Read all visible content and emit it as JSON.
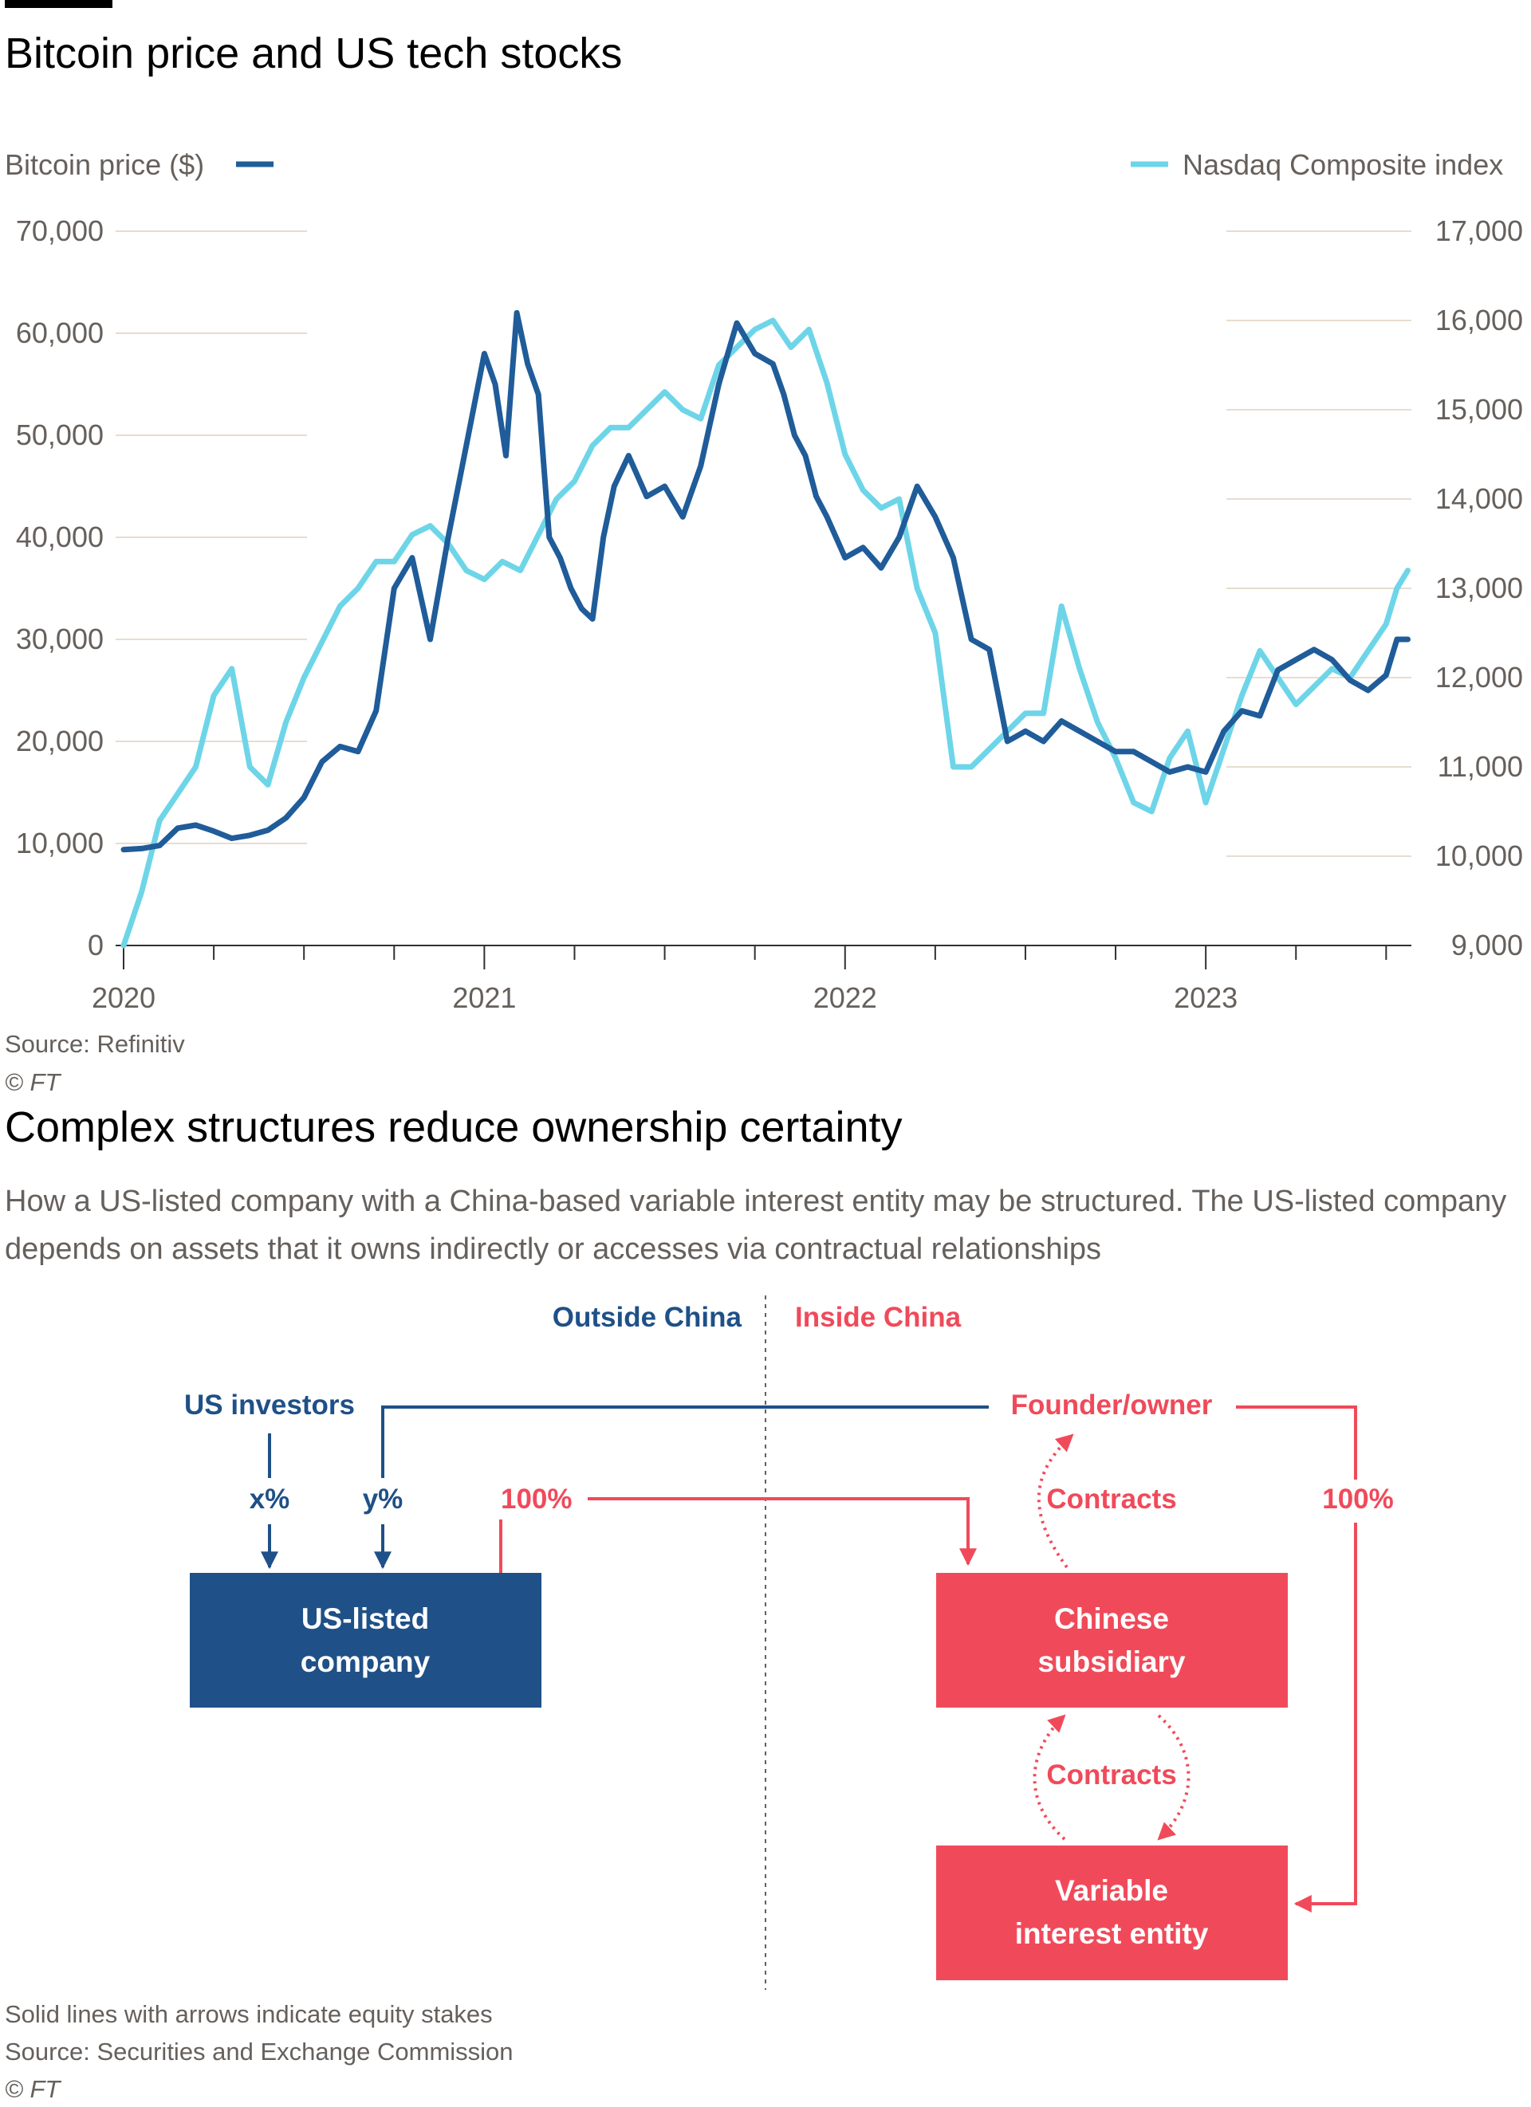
{
  "chart1": {
    "title": "Bitcoin price and US tech stocks",
    "source": "Source: Refinitiv",
    "copyright": "© FT"
  },
  "chart_data": {
    "type": "line",
    "title": "Bitcoin price and US tech stocks",
    "x_ticks": [
      "2020",
      "2021",
      "2022",
      "2023"
    ],
    "x_range": [
      2020.0,
      2023.57
    ],
    "left_axis": {
      "label": "Bitcoin price ($)",
      "ticks": [
        "0",
        "10,000",
        "20,000",
        "30,000",
        "40,000",
        "50,000",
        "60,000",
        "70,000"
      ],
      "range": [
        0,
        70000
      ]
    },
    "right_axis": {
      "label": "Nasdaq Composite index",
      "ticks": [
        "9,000",
        "10,000",
        "11,000",
        "12,000",
        "13,000",
        "14,000",
        "15,000",
        "16,000",
        "17,000"
      ],
      "range": [
        9000,
        17000
      ]
    },
    "grid": true,
    "legend": "top",
    "series": [
      {
        "name": "Bitcoin price ($)",
        "axis": "left",
        "color": "#1f5c99",
        "x": [
          2020.0,
          2020.05,
          2020.1,
          2020.15,
          2020.2,
          2020.25,
          2020.3,
          2020.35,
          2020.4,
          2020.45,
          2020.5,
          2020.55,
          2020.6,
          2020.65,
          2020.7,
          2020.75,
          2020.8,
          2020.85,
          2020.9,
          2020.95,
          2021.0,
          2021.03,
          2021.06,
          2021.09,
          2021.12,
          2021.15,
          2021.18,
          2021.21,
          2021.24,
          2021.27,
          2021.3,
          2021.33,
          2021.36,
          2021.4,
          2021.45,
          2021.5,
          2021.55,
          2021.6,
          2021.65,
          2021.7,
          2021.75,
          2021.8,
          2021.83,
          2021.86,
          2021.89,
          2021.92,
          2021.95,
          2022.0,
          2022.05,
          2022.1,
          2022.15,
          2022.2,
          2022.25,
          2022.3,
          2022.35,
          2022.4,
          2022.45,
          2022.5,
          2022.55,
          2022.6,
          2022.65,
          2022.7,
          2022.75,
          2022.8,
          2022.85,
          2022.9,
          2022.95,
          2023.0,
          2023.05,
          2023.1,
          2023.15,
          2023.2,
          2023.25,
          2023.3,
          2023.35,
          2023.4,
          2023.45,
          2023.5,
          2023.53,
          2023.56
        ],
        "y": [
          9400,
          9500,
          9800,
          11500,
          11800,
          11200,
          10500,
          10800,
          11300,
          12500,
          14500,
          18000,
          19500,
          19000,
          23000,
          35000,
          38000,
          30000,
          40000,
          49000,
          58000,
          55000,
          48000,
          62000,
          57000,
          54000,
          40000,
          38000,
          35000,
          33000,
          32000,
          40000,
          45000,
          48000,
          44000,
          45000,
          42000,
          47000,
          55000,
          61000,
          58000,
          57000,
          54000,
          50000,
          48000,
          44000,
          42000,
          38000,
          39000,
          37000,
          40000,
          45000,
          42000,
          38000,
          30000,
          29000,
          20000,
          21000,
          20000,
          22000,
          21000,
          20000,
          19000,
          19000,
          18000,
          17000,
          17500,
          17000,
          21000,
          23000,
          22500,
          27000,
          28000,
          29000,
          28000,
          26000,
          25000,
          26500,
          30000,
          30000
        ]
      },
      {
        "name": "Nasdaq Composite index",
        "axis": "right",
        "color": "#6ed5e8",
        "x": [
          2020.0,
          2020.05,
          2020.1,
          2020.15,
          2020.2,
          2020.25,
          2020.3,
          2020.35,
          2020.4,
          2020.45,
          2020.5,
          2020.55,
          2020.6,
          2020.65,
          2020.7,
          2020.75,
          2020.8,
          2020.85,
          2020.9,
          2020.95,
          2021.0,
          2021.05,
          2021.1,
          2021.15,
          2021.2,
          2021.25,
          2021.3,
          2021.35,
          2021.4,
          2021.45,
          2021.5,
          2021.55,
          2021.6,
          2021.65,
          2021.7,
          2021.75,
          2021.8,
          2021.85,
          2021.9,
          2021.95,
          2022.0,
          2022.05,
          2022.1,
          2022.15,
          2022.2,
          2022.25,
          2022.3,
          2022.35,
          2022.4,
          2022.45,
          2022.5,
          2022.55,
          2022.6,
          2022.65,
          2022.7,
          2022.75,
          2022.8,
          2022.85,
          2022.9,
          2022.95,
          2023.0,
          2023.05,
          2023.1,
          2023.15,
          2023.2,
          2023.25,
          2023.3,
          2023.35,
          2023.4,
          2023.45,
          2023.5,
          2023.53,
          2023.56
        ],
        "y": [
          9000,
          9600,
          10400,
          10700,
          11000,
          11800,
          12100,
          11000,
          10800,
          11500,
          12000,
          12400,
          12800,
          13000,
          13300,
          13300,
          13600,
          13700,
          13500,
          13200,
          13100,
          13300,
          13200,
          13600,
          14000,
          14200,
          14600,
          14800,
          14800,
          15000,
          15200,
          15000,
          14900,
          15500,
          15700,
          15900,
          16000,
          15700,
          15900,
          15300,
          14500,
          14100,
          13900,
          14000,
          13000,
          12500,
          11000,
          11000,
          11200,
          11400,
          11600,
          11600,
          12800,
          12100,
          11500,
          11100,
          10600,
          10500,
          11100,
          11400,
          10600,
          11200,
          11800,
          12300,
          12000,
          11700,
          11900,
          12100,
          12000,
          12300,
          12600,
          13000,
          13200
        ]
      }
    ]
  },
  "chart2": {
    "title": "Complex structures reduce ownership certainty",
    "subtitle": "How a US-listed company with a China-based variable interest entity may be structured. The US-listed company depends on assets that it owns indirectly or accesses via contractual relationships",
    "outside_label": "Outside China",
    "inside_label": "Inside China",
    "us_investors": "US investors",
    "founder_owner": "Founder/owner",
    "x_pct": "x%",
    "y_pct": "y%",
    "pct_100_left": "100%",
    "pct_100_right": "100%",
    "contracts_top": "Contracts",
    "contracts_mid": "Contracts",
    "us_listed_line1": "US-listed",
    "us_listed_line2": "company",
    "chinese_sub_line1": "Chinese",
    "chinese_sub_line2": "subsidiary",
    "vie_line1": "Variable",
    "vie_line2": "interest entity",
    "note": "Solid lines with arrows indicate equity stakes",
    "source": "Source: Securities and Exchange Commission",
    "copyright": "© FT",
    "colors": {
      "blue": "#1f5087",
      "red": "#f04a5a"
    }
  }
}
